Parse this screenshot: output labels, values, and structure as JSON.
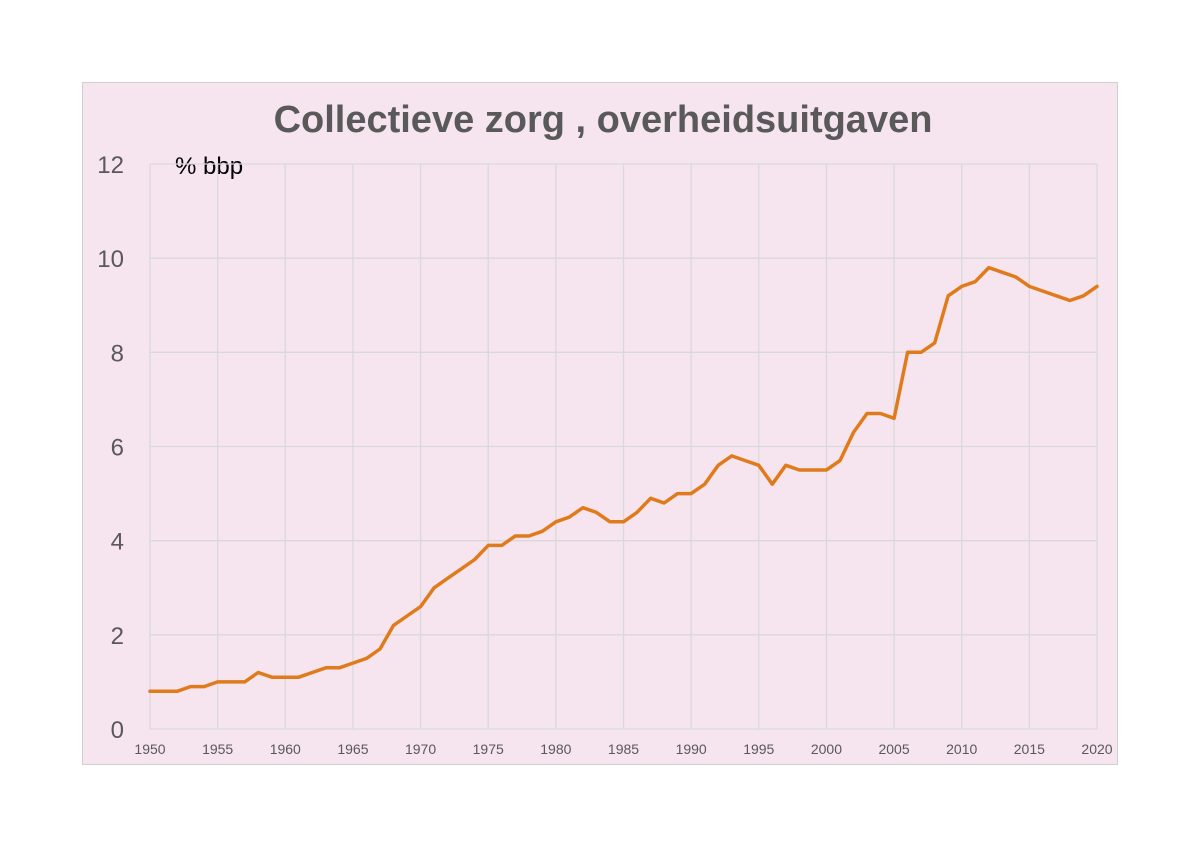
{
  "chart_data": {
    "type": "line",
    "title": "Collectieve zorg , overheidsuitgaven",
    "ylabel": "% bbp",
    "xlabel": "",
    "xlim": [
      1950,
      2020
    ],
    "ylim": [
      0,
      12
    ],
    "grid": true,
    "x_ticks": [
      "1950",
      "1955",
      "1960",
      "1965",
      "1970",
      "1975",
      "1980",
      "1985",
      "1990",
      "1995",
      "2000",
      "2005",
      "2010",
      "2015",
      "2020"
    ],
    "y_ticks": [
      "0",
      "2",
      "4",
      "6",
      "8",
      "10",
      "12"
    ],
    "colors": {
      "line": "#e07b1c",
      "background": "#f6e4ef",
      "grid": "#d9d9d9"
    },
    "series": [
      {
        "x": [
          1950,
          1951,
          1952,
          1953,
          1954,
          1955,
          1956,
          1957,
          1958,
          1959,
          1960,
          1961,
          1962,
          1963,
          1964,
          1965,
          1966,
          1967,
          1968,
          1969,
          1970,
          1971,
          1972,
          1973,
          1974,
          1975,
          1976,
          1977,
          1978,
          1979,
          1980,
          1981,
          1982,
          1983,
          1984,
          1985,
          1986,
          1987,
          1988,
          1989,
          1990,
          1991,
          1992,
          1993,
          1994,
          1995,
          1996,
          1997,
          1998,
          1999,
          2000,
          2001,
          2002,
          2003,
          2004,
          2005,
          2006,
          2007,
          2008,
          2009,
          2010,
          2011,
          2012,
          2013,
          2014,
          2015,
          2016,
          2017,
          2018,
          2019,
          2020
        ],
        "values": [
          0.8,
          0.8,
          0.8,
          0.9,
          0.9,
          1.0,
          1.0,
          1.0,
          1.2,
          1.1,
          1.1,
          1.1,
          1.2,
          1.3,
          1.3,
          1.4,
          1.5,
          1.7,
          2.2,
          2.4,
          2.6,
          3.0,
          3.2,
          3.4,
          3.6,
          3.9,
          3.9,
          4.1,
          4.1,
          4.2,
          4.4,
          4.5,
          4.7,
          4.6,
          4.4,
          4.4,
          4.6,
          4.9,
          4.8,
          5.0,
          5.0,
          5.2,
          5.6,
          5.8,
          5.7,
          5.6,
          5.2,
          5.6,
          5.5,
          5.5,
          5.5,
          5.7,
          6.3,
          6.7,
          6.7,
          6.6,
          8.0,
          8.0,
          8.2,
          9.2,
          9.4,
          9.5,
          9.8,
          9.7,
          9.6,
          9.4,
          9.3,
          9.2,
          9.1,
          9.2,
          9.4
        ]
      }
    ]
  }
}
